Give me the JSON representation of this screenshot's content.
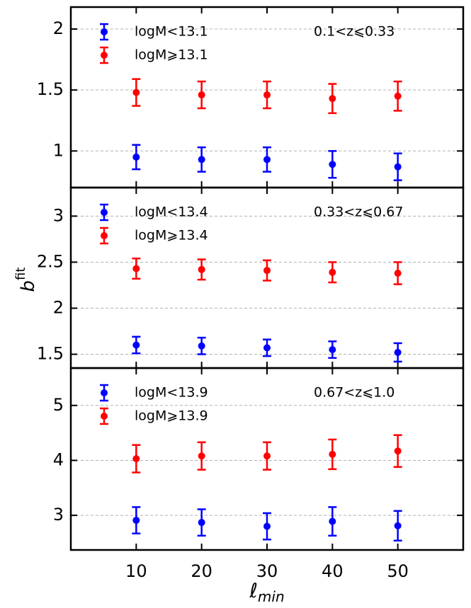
{
  "chart_data": [
    {
      "type": "errorbar",
      "annotation": "0.1<z⩽0.33",
      "x": [
        10,
        20,
        30,
        40,
        50
      ],
      "xlim": [
        0,
        60
      ],
      "xticks": [
        10,
        20,
        30,
        40,
        50
      ],
      "xtick_labels": false,
      "ylim": [
        0.7,
        2.18
      ],
      "yticks": [
        1.0,
        1.5,
        2.0
      ],
      "grid": true,
      "series": [
        {
          "name": "logM<13.1",
          "color": "#0000ff",
          "values": [
            0.95,
            0.93,
            0.93,
            0.89,
            0.87
          ],
          "errors": [
            0.1,
            0.1,
            0.1,
            0.11,
            0.11
          ]
        },
        {
          "name": "logM⩾13.1",
          "color": "#ff0000",
          "values": [
            1.48,
            1.46,
            1.46,
            1.43,
            1.45
          ],
          "errors": [
            0.11,
            0.11,
            0.11,
            0.12,
            0.12
          ]
        }
      ]
    },
    {
      "type": "errorbar",
      "annotation": "0.33<z⩽0.67",
      "ylabel": "b",
      "ylabel_superscript": "fit",
      "x": [
        10,
        20,
        30,
        40,
        50
      ],
      "xlim": [
        0,
        60
      ],
      "xticks": [
        10,
        20,
        30,
        40,
        50
      ],
      "xtick_labels": false,
      "ylim": [
        1.35,
        3.31
      ],
      "yticks": [
        1.5,
        2.0,
        2.5,
        3.0
      ],
      "grid": true,
      "series": [
        {
          "name": "logM<13.4",
          "color": "#0000ff",
          "values": [
            1.6,
            1.59,
            1.57,
            1.55,
            1.52
          ],
          "errors": [
            0.09,
            0.09,
            0.09,
            0.09,
            0.1
          ]
        },
        {
          "name": "logM⩾13.4",
          "color": "#ff0000",
          "values": [
            2.43,
            2.42,
            2.41,
            2.39,
            2.38
          ],
          "errors": [
            0.11,
            0.11,
            0.11,
            0.11,
            0.12
          ]
        }
      ]
    },
    {
      "type": "errorbar",
      "annotation": "0.67<z⩽1.0",
      "xlabel": "ℓ",
      "xlabel_subscript": "min",
      "x": [
        10,
        20,
        30,
        40,
        50
      ],
      "xlim": [
        0,
        60
      ],
      "xticks": [
        10,
        20,
        30,
        40,
        50
      ],
      "xtick_labels": true,
      "ylim": [
        2.37,
        5.68
      ],
      "yticks": [
        3,
        4,
        5
      ],
      "grid": true,
      "series": [
        {
          "name": "logM<13.9",
          "color": "#0000ff",
          "values": [
            2.91,
            2.87,
            2.8,
            2.89,
            2.81
          ],
          "errors": [
            0.24,
            0.24,
            0.24,
            0.26,
            0.27
          ]
        },
        {
          "name": "logM⩾13.9",
          "color": "#ff0000",
          "values": [
            4.03,
            4.08,
            4.08,
            4.11,
            4.17
          ],
          "errors": [
            0.25,
            0.25,
            0.25,
            0.27,
            0.29
          ]
        }
      ]
    }
  ]
}
